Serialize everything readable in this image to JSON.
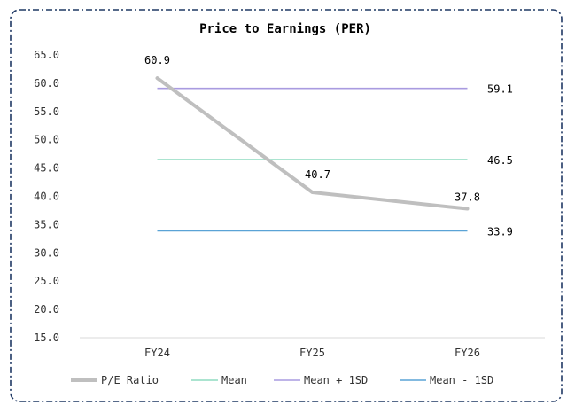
{
  "chart_data": {
    "type": "line",
    "title": "Price to Earnings (PER)",
    "xlabel": "",
    "ylabel": "",
    "categories": [
      "FY24",
      "FY25",
      "FY26"
    ],
    "ylim": [
      15.0,
      65.0
    ],
    "ytick_step": 5.0,
    "y_tick_labels": [
      "15.0",
      "20.0",
      "25.0",
      "30.0",
      "35.0",
      "40.0",
      "45.0",
      "50.0",
      "55.0",
      "60.0",
      "65.0"
    ],
    "grid": false,
    "legend_position": "bottom",
    "series": [
      {
        "name": "P/E Ratio",
        "values": [
          60.9,
          40.7,
          37.8
        ],
        "labels": [
          "60.9",
          "40.7",
          "37.8"
        ],
        "color": "#bfbfbf",
        "end_label_only": false
      },
      {
        "name": "Mean",
        "values": [
          46.5,
          46.5,
          46.5
        ],
        "labels": [
          "46.5"
        ],
        "color": "#8fdcc0",
        "end_label_only": true
      },
      {
        "name": "Mean + 1SD",
        "values": [
          59.1,
          59.1,
          59.1
        ],
        "labels": [
          "59.1"
        ],
        "color": "#a99be0",
        "end_label_only": true
      },
      {
        "name": "Mean - 1SD",
        "values": [
          33.9,
          33.9,
          33.9
        ],
        "labels": [
          "33.9"
        ],
        "color": "#5aa3d6",
        "end_label_only": true
      }
    ],
    "frame_color": "#1f3864"
  }
}
